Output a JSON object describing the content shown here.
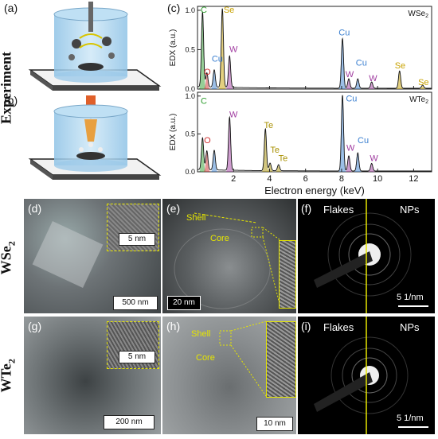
{
  "panels": {
    "a": "(a)",
    "b": "(b)",
    "c": "(c)",
    "d": "(d)",
    "e": "(e)",
    "f": "(f)",
    "g": "(g)",
    "h": "(h)",
    "i": "(i)"
  },
  "side_labels": {
    "experiment": "Experiment",
    "wse2": "WSe",
    "wse2_sub": "2",
    "wte2": "WTe",
    "wte2_sub": "2"
  },
  "colors": {
    "C": "#2e9d2e",
    "O": "#d03030",
    "Se": "#c8a200",
    "Cu": "#3a7fd0",
    "W": "#a03ca0",
    "Te": "#a89000"
  },
  "chart_data": {
    "type": "line",
    "xlabel": "Electron energy (keV)",
    "ylabel": "EDX (a.u.)",
    "xlim": [
      0,
      13
    ],
    "xticks": [
      2,
      4,
      6,
      8,
      10,
      12
    ],
    "subplots": [
      {
        "name": "WSe2",
        "name_main": "WSe",
        "name_sub": "2",
        "ylim": [
          0,
          1.05
        ],
        "yticks": [
          0.0,
          0.5,
          1.0
        ],
        "peaks": [
          {
            "x": 0.28,
            "y": 0.95,
            "el": "C"
          },
          {
            "x": 0.52,
            "y": 0.18,
            "el": "O"
          },
          {
            "x": 0.93,
            "y": 0.22,
            "el": "Cu"
          },
          {
            "x": 1.38,
            "y": 1.0,
            "el": "Se"
          },
          {
            "x": 1.78,
            "y": 0.4,
            "el": "W"
          },
          {
            "x": 8.05,
            "y": 0.63,
            "el": "Cu"
          },
          {
            "x": 8.4,
            "y": 0.12,
            "el": "W"
          },
          {
            "x": 8.9,
            "y": 0.12,
            "el": "Cu"
          },
          {
            "x": 9.67,
            "y": 0.08,
            "el": "W"
          },
          {
            "x": 11.22,
            "y": 0.22,
            "el": "Se"
          },
          {
            "x": 12.5,
            "y": 0.04,
            "el": "Se"
          }
        ],
        "labels": [
          {
            "text": "C",
            "x": 0.35,
            "y": 0.97,
            "el": "C"
          },
          {
            "text": "Se",
            "x": 1.75,
            "y": 0.97,
            "el": "Se"
          },
          {
            "text": "Cu",
            "x": 1.1,
            "y": 0.35,
            "el": "Cu"
          },
          {
            "text": "O",
            "x": 0.55,
            "y": 0.18,
            "el": "O"
          },
          {
            "text": "W",
            "x": 2.0,
            "y": 0.47,
            "el": "W"
          },
          {
            "text": "Cu",
            "x": 8.15,
            "y": 0.68,
            "el": "Cu"
          },
          {
            "text": "Cu",
            "x": 9.1,
            "y": 0.3,
            "el": "Cu"
          },
          {
            "text": "W",
            "x": 8.45,
            "y": 0.15,
            "el": "W"
          },
          {
            "text": "W",
            "x": 9.75,
            "y": 0.1,
            "el": "W"
          },
          {
            "text": "Se",
            "x": 11.25,
            "y": 0.26,
            "el": "Se"
          },
          {
            "text": "Se",
            "x": 12.55,
            "y": 0.05,
            "el": "Se"
          }
        ]
      },
      {
        "name": "WTe2",
        "name_main": "WTe",
        "name_sub": "2",
        "ylim": [
          0,
          1.05
        ],
        "yticks": [
          0.0,
          0.5,
          1.0
        ],
        "peaks": [
          {
            "x": 0.28,
            "y": 0.42,
            "el": "C"
          },
          {
            "x": 0.52,
            "y": 0.25,
            "el": "O"
          },
          {
            "x": 0.93,
            "y": 0.26,
            "el": "Cu"
          },
          {
            "x": 1.78,
            "y": 0.7,
            "el": "W"
          },
          {
            "x": 3.77,
            "y": 0.55,
            "el": "Te"
          },
          {
            "x": 4.03,
            "y": 0.1,
            "el": "Te"
          },
          {
            "x": 4.5,
            "y": 0.08,
            "el": "Te"
          },
          {
            "x": 8.05,
            "y": 1.0,
            "el": "Cu"
          },
          {
            "x": 8.4,
            "y": 0.2,
            "el": "W"
          },
          {
            "x": 8.9,
            "y": 0.24,
            "el": "Cu"
          },
          {
            "x": 9.67,
            "y": 0.1,
            "el": "W"
          }
        ],
        "labels": [
          {
            "text": "C",
            "x": 0.35,
            "y": 0.9,
            "el": "C"
          },
          {
            "text": "W",
            "x": 2.0,
            "y": 0.72,
            "el": "W"
          },
          {
            "text": "O",
            "x": 0.55,
            "y": 0.38,
            "el": "O"
          },
          {
            "text": "Te",
            "x": 3.95,
            "y": 0.58,
            "el": "Te"
          },
          {
            "text": "Te",
            "x": 4.3,
            "y": 0.25,
            "el": "Te"
          },
          {
            "text": "Te",
            "x": 4.75,
            "y": 0.14,
            "el": "Te"
          },
          {
            "text": "Cu",
            "x": 8.55,
            "y": 0.93,
            "el": "Cu"
          },
          {
            "text": "W",
            "x": 8.5,
            "y": 0.28,
            "el": "W"
          },
          {
            "text": "Cu",
            "x": 9.2,
            "y": 0.38,
            "el": "Cu"
          },
          {
            "text": "W",
            "x": 9.8,
            "y": 0.14,
            "el": "W"
          }
        ]
      }
    ]
  },
  "images": {
    "d": {
      "scale": "500 nm",
      "inset_scale": "5 nm"
    },
    "e": {
      "scale": "20 nm",
      "shell": "Shell",
      "core": "Core"
    },
    "f": {
      "left": "Flakes",
      "right": "NPs",
      "scale": "5 1/nm"
    },
    "g": {
      "scale": "200 nm",
      "inset_scale": "5 nm"
    },
    "h": {
      "scale": "10 nm",
      "shell": "Shell",
      "core": "Core"
    },
    "i": {
      "left": "Flakes",
      "right": "NPs",
      "scale": "5 1/nm"
    }
  }
}
